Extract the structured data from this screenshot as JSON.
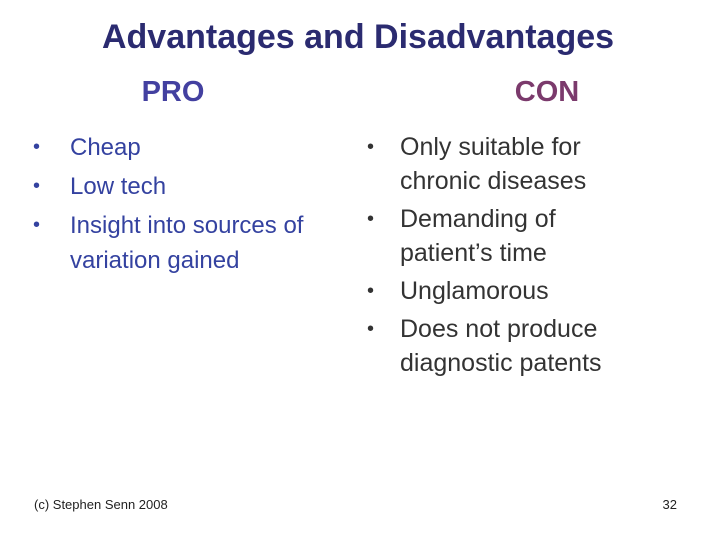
{
  "title": "Advantages and Disadvantages",
  "pro": {
    "heading": "PRO",
    "items": [
      "Cheap",
      "Low tech",
      "Insight into sources of variation gained"
    ]
  },
  "con": {
    "heading": "CON",
    "items": [
      "Only suitable for chronic diseases",
      "Demanding of patient’s time",
      "Unglamorous",
      "Does not produce diagnostic patents"
    ]
  },
  "footer": {
    "credit": "(c) Stephen Senn 2008",
    "page": "32"
  }
}
